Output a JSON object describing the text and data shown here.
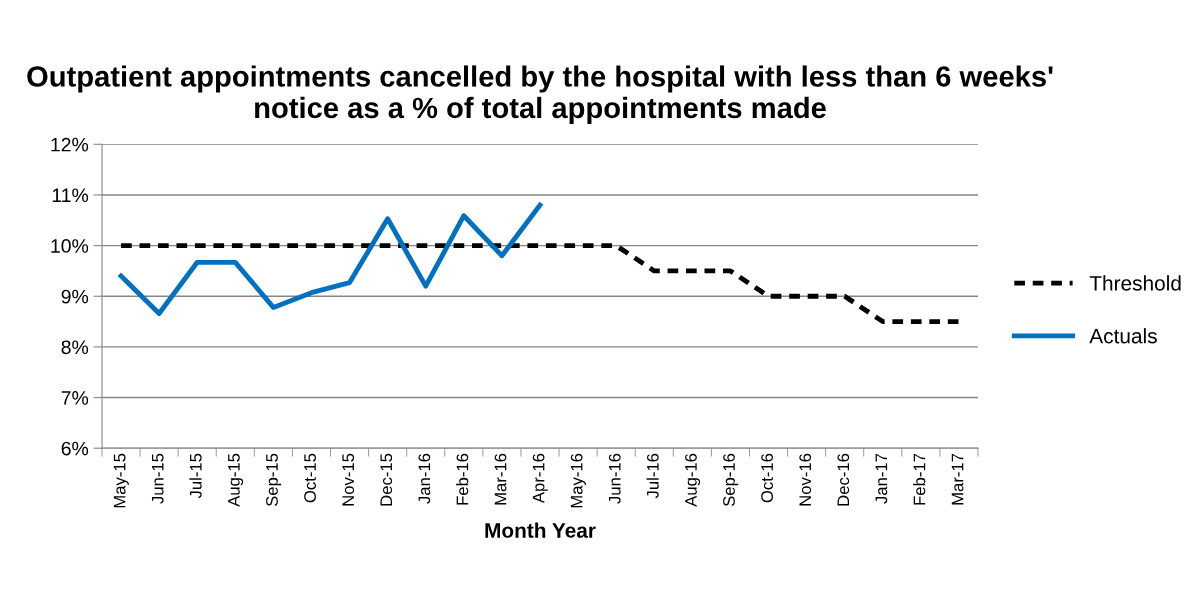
{
  "chart_data": {
    "type": "line",
    "title": "Outpatient appointments cancelled by the hospital with less than 6 weeks' notice as a % of total appointments made",
    "xlabel": "Month Year",
    "categories": [
      "May-15",
      "Jun-15",
      "Jul-15",
      "Aug-15",
      "Sep-15",
      "Oct-15",
      "Nov-15",
      "Dec-15",
      "Jan-16",
      "Feb-16",
      "Mar-16",
      "Apr-16",
      "May-16",
      "Jun-16",
      "Jul-16",
      "Aug-16",
      "Sep-16",
      "Oct-16",
      "Nov-16",
      "Dec-16",
      "Jan-17",
      "Feb-17",
      "Mar-17"
    ],
    "series": [
      {
        "name": "Threshold",
        "color": "#000000",
        "line_style": "dashed",
        "values": [
          10,
          10,
          10,
          10,
          10,
          10,
          10,
          10,
          10,
          10,
          10,
          10,
          10,
          10,
          9.5,
          9.5,
          9.5,
          9,
          9,
          9,
          8.5,
          8.5,
          8.5
        ]
      },
      {
        "name": "Actuals",
        "color": "#0070c0",
        "line_style": "solid",
        "values": [
          9.4,
          8.66,
          9.67,
          9.67,
          8.78,
          9.07,
          9.27,
          10.53,
          9.2,
          10.59,
          9.8,
          10.8,
          null,
          null,
          null,
          null,
          null,
          null,
          null,
          null,
          null,
          null,
          null
        ]
      }
    ],
    "ylim": [
      6,
      12
    ],
    "yticks": [
      {
        "value": 6,
        "label": "6%"
      },
      {
        "value": 7,
        "label": "7%"
      },
      {
        "value": 8,
        "label": "8%"
      },
      {
        "value": 9,
        "label": "9%"
      },
      {
        "value": 10,
        "label": "10%"
      },
      {
        "value": 11,
        "label": "11%"
      },
      {
        "value": 12,
        "label": "12%"
      }
    ],
    "grid": "y",
    "legend": "right",
    "marker": "none"
  }
}
